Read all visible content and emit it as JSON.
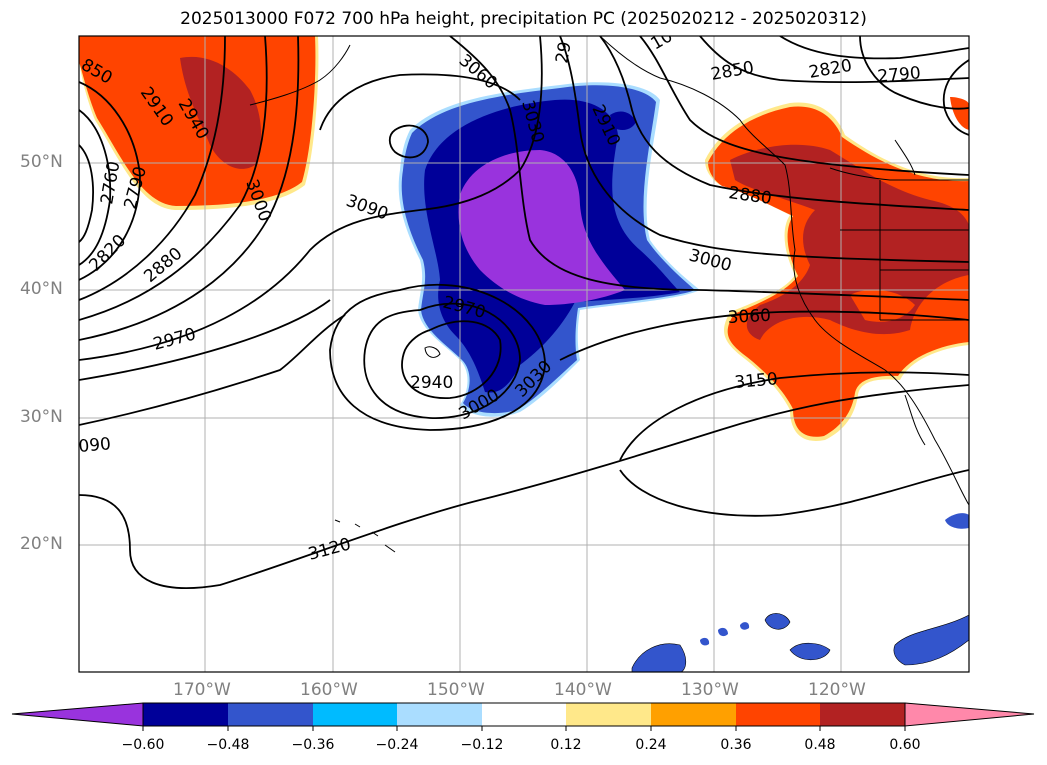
{
  "title": "2025013000 F072 700 hPa height, precipitation PC (2025020212 - 2025020312)",
  "lat_labels": [
    "50°N",
    "40°N",
    "30°N",
    "20°N"
  ],
  "lon_labels": [
    "170°W",
    "160°W",
    "150°W",
    "140°W",
    "130°W",
    "120°W"
  ],
  "contour_labels": [
    "850",
    "2910",
    "2940",
    "3000",
    "2760",
    "2790",
    "2820",
    "2880",
    "2970",
    "090",
    "3120",
    "3090",
    "2970",
    "2940",
    "3000",
    "3030",
    "3060",
    "3030",
    "2910",
    "29",
    "10",
    "2850",
    "2820",
    "2790",
    "2880",
    "3000",
    "3060",
    "3150"
  ],
  "colorbar": {
    "colors": [
      "#9933dd",
      "#000099",
      "#3355cc",
      "#00bbff",
      "#aaddff",
      "#ffffff",
      "#ffe88a",
      "#ffa000",
      "#ff4400",
      "#b22222",
      "#ff88aa"
    ],
    "tick_labels": [
      "−0.60",
      "−0.48",
      "−0.36",
      "−0.24",
      "−0.12",
      "0.12",
      "0.24",
      "0.36",
      "0.48",
      "0.60"
    ]
  }
}
